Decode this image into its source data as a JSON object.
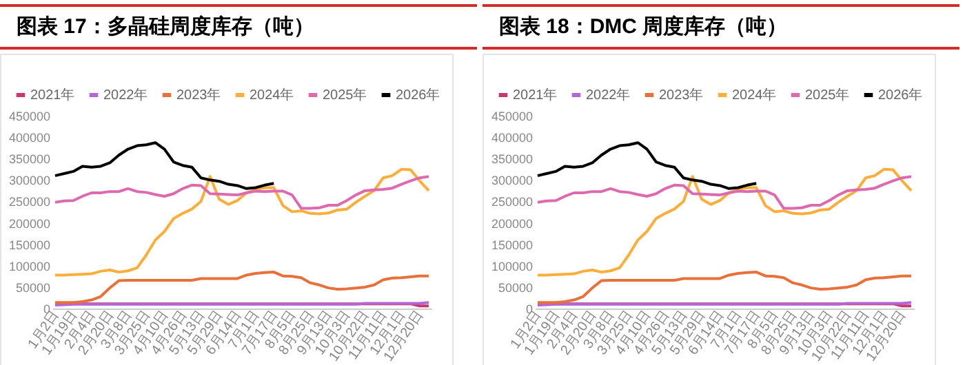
{
  "chart_data": [
    {
      "type": "line",
      "title": "图表 17：多晶硅周度库存（吨）",
      "categories": [
        "1月2日",
        null,
        "1月19日",
        null,
        "2月4日",
        null,
        "2月20日",
        null,
        "3月8日",
        null,
        "3月25日",
        null,
        "4月10日",
        null,
        "4月26日",
        null,
        "5月13日",
        null,
        "5月29日",
        null,
        "6月14日",
        null,
        "7月1日",
        null,
        "7月17日",
        null,
        "8月5日",
        null,
        "8月25日",
        null,
        "9月13日",
        null,
        "10月3日",
        null,
        "10月22日",
        null,
        "11月11日",
        null,
        "12月1日",
        null,
        "12月20日",
        null
      ],
      "ylim": [
        0,
        450000
      ],
      "yticks": [
        0,
        50000,
        100000,
        150000,
        200000,
        250000,
        300000,
        350000,
        400000,
        450000
      ],
      "legend": "top",
      "series": [
        {
          "name": "2021年",
          "color": "#c8386e",
          "values": [
            11000,
            11000,
            11000,
            11000,
            11000,
            11000,
            11000,
            11000,
            11000,
            11000,
            11000,
            11000,
            11000,
            11000,
            11000,
            11000,
            11000,
            11000,
            11000,
            11000,
            11000,
            11000,
            11000,
            11000,
            11000,
            11000,
            11000,
            11000,
            11000,
            11000,
            11000,
            11000,
            11000,
            11000,
            11000,
            11000,
            11000,
            11000,
            11000,
            11000,
            6000,
            6000
          ]
        },
        {
          "name": "2022年",
          "color": "#b366d4",
          "values": [
            8000,
            9000,
            10000,
            10000,
            10000,
            10000,
            10000,
            10000,
            10000,
            10000,
            10000,
            10000,
            10000,
            10000,
            10000,
            10000,
            10000,
            10000,
            10000,
            10000,
            10000,
            10000,
            10000,
            10000,
            10000,
            10000,
            10000,
            10000,
            10000,
            10000,
            10000,
            10000,
            10000,
            10000,
            12000,
            12000,
            12000,
            12000,
            12000,
            12000,
            12000,
            14000
          ]
        },
        {
          "name": "2023年",
          "color": "#e8703a",
          "values": [
            14000,
            14000,
            14000,
            16000,
            20000,
            28000,
            48000,
            65000,
            66000,
            66000,
            66000,
            66000,
            66000,
            66000,
            66000,
            66000,
            70000,
            70000,
            70000,
            70000,
            70000,
            78000,
            82000,
            84000,
            85000,
            76000,
            75000,
            72000,
            60000,
            55000,
            48000,
            45000,
            46000,
            48000,
            50000,
            55000,
            67000,
            71000,
            72000,
            74000,
            76000,
            76000
          ]
        },
        {
          "name": "2024年",
          "color": "#fbae3c",
          "values": [
            78000,
            78000,
            79000,
            80000,
            81000,
            87000,
            90000,
            85000,
            88000,
            95000,
            125000,
            160000,
            180000,
            210000,
            222000,
            232000,
            250000,
            308000,
            255000,
            243000,
            252000,
            270000,
            278000,
            282000,
            282000,
            240000,
            226000,
            228000,
            222000,
            221000,
            223000,
            230000,
            232000,
            248000,
            262000,
            275000,
            305000,
            310000,
            325000,
            324000,
            298000,
            275000
          ]
        },
        {
          "name": "2025年",
          "color": "#dd6aaf",
          "values": [
            248000,
            251000,
            252000,
            262000,
            270000,
            270000,
            273000,
            273000,
            280000,
            273000,
            271000,
            266000,
            262000,
            268000,
            280000,
            288000,
            287000,
            268000,
            267000,
            266000,
            265000,
            270000,
            274000,
            273000,
            274000,
            274000,
            265000,
            234000,
            234000,
            235000,
            241000,
            241000,
            252000,
            265000,
            275000,
            277000,
            278000,
            281000,
            290000,
            298000,
            305000,
            308000
          ]
        },
        {
          "name": "2026年",
          "color": "#000000",
          "values": [
            310000,
            315000,
            320000,
            332000,
            330000,
            332000,
            340000,
            358000,
            372000,
            380000,
            382000,
            387000,
            372000,
            342000,
            334000,
            330000,
            305000,
            300000,
            297000,
            290000,
            287000,
            280000,
            282000,
            288000,
            292000,
            null,
            null,
            null,
            null,
            null,
            null,
            null,
            null,
            null,
            null,
            null,
            null,
            null,
            null,
            null,
            null,
            null
          ]
        }
      ]
    },
    {
      "type": "line",
      "title": "图表 18：DMC 周度库存（吨）",
      "categories": [
        "1月2日",
        null,
        "1月19日",
        null,
        "2月4日",
        null,
        "2月20日",
        null,
        "3月8日",
        null,
        "3月25日",
        null,
        "4月10日",
        null,
        "4月26日",
        null,
        "5月13日",
        null,
        "5月29日",
        null,
        "6月14日",
        null,
        "7月1日",
        null,
        "7月17日",
        null,
        "8月5日",
        null,
        "8月25日",
        null,
        "9月13日",
        null,
        "10月3日",
        null,
        "10月22日",
        null,
        "11月11日",
        null,
        "12月1日",
        null,
        "12月20日",
        null
      ],
      "ylim": [
        0,
        450000
      ],
      "yticks": [
        0,
        50000,
        100000,
        150000,
        200000,
        250000,
        300000,
        350000,
        400000,
        450000
      ],
      "legend": "top",
      "series": [
        {
          "name": "2021年",
          "color": "#c8386e",
          "values": [
            11000,
            11000,
            11000,
            11000,
            11000,
            11000,
            11000,
            11000,
            11000,
            11000,
            11000,
            11000,
            11000,
            11000,
            11000,
            11000,
            11000,
            11000,
            11000,
            11000,
            11000,
            11000,
            11000,
            11000,
            11000,
            11000,
            11000,
            11000,
            11000,
            11000,
            11000,
            11000,
            11000,
            11000,
            11000,
            11000,
            11000,
            11000,
            11000,
            11000,
            6000,
            6000
          ]
        },
        {
          "name": "2022年",
          "color": "#b366d4",
          "values": [
            8000,
            9000,
            10000,
            10000,
            10000,
            10000,
            10000,
            10000,
            10000,
            10000,
            10000,
            10000,
            10000,
            10000,
            10000,
            10000,
            10000,
            10000,
            10000,
            10000,
            10000,
            10000,
            10000,
            10000,
            10000,
            10000,
            10000,
            10000,
            10000,
            10000,
            10000,
            10000,
            10000,
            10000,
            12000,
            12000,
            12000,
            12000,
            12000,
            12000,
            12000,
            14000
          ]
        },
        {
          "name": "2023年",
          "color": "#e8703a",
          "values": [
            14000,
            14000,
            14000,
            16000,
            20000,
            28000,
            48000,
            65000,
            66000,
            66000,
            66000,
            66000,
            66000,
            66000,
            66000,
            66000,
            70000,
            70000,
            70000,
            70000,
            70000,
            78000,
            82000,
            84000,
            85000,
            76000,
            75000,
            72000,
            60000,
            55000,
            48000,
            45000,
            46000,
            48000,
            50000,
            55000,
            67000,
            71000,
            72000,
            74000,
            76000,
            76000
          ]
        },
        {
          "name": "2024年",
          "color": "#fbae3c",
          "values": [
            78000,
            78000,
            79000,
            80000,
            81000,
            87000,
            90000,
            85000,
            88000,
            95000,
            125000,
            160000,
            180000,
            210000,
            222000,
            232000,
            250000,
            308000,
            255000,
            243000,
            252000,
            270000,
            278000,
            282000,
            282000,
            240000,
            226000,
            228000,
            222000,
            221000,
            223000,
            230000,
            232000,
            248000,
            262000,
            275000,
            305000,
            310000,
            325000,
            324000,
            298000,
            275000
          ]
        },
        {
          "name": "2025年",
          "color": "#dd6aaf",
          "values": [
            248000,
            251000,
            252000,
            262000,
            270000,
            270000,
            273000,
            273000,
            280000,
            273000,
            271000,
            266000,
            262000,
            268000,
            280000,
            288000,
            287000,
            268000,
            267000,
            266000,
            265000,
            270000,
            274000,
            273000,
            274000,
            274000,
            265000,
            234000,
            234000,
            235000,
            241000,
            241000,
            252000,
            265000,
            275000,
            277000,
            278000,
            281000,
            290000,
            298000,
            305000,
            308000
          ]
        },
        {
          "name": "2026年",
          "color": "#000000",
          "values": [
            310000,
            315000,
            320000,
            332000,
            330000,
            332000,
            340000,
            358000,
            372000,
            380000,
            382000,
            387000,
            372000,
            342000,
            334000,
            330000,
            305000,
            300000,
            297000,
            290000,
            287000,
            280000,
            282000,
            288000,
            292000,
            null,
            null,
            null,
            null,
            null,
            null,
            null,
            null,
            null,
            null,
            null,
            null,
            null,
            null,
            null,
            null,
            null
          ]
        }
      ]
    }
  ]
}
